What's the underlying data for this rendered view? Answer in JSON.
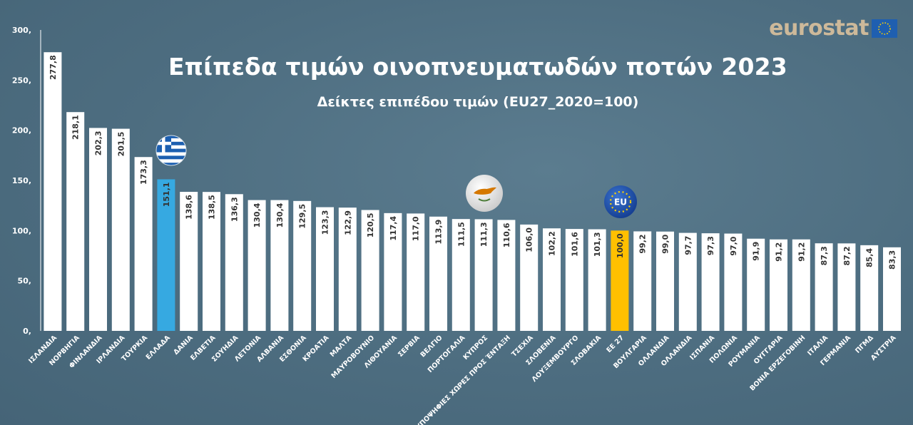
{
  "logo": {
    "text": "eurostat"
  },
  "colors": {
    "background": "#4f6f82",
    "bar_default": "#ffffff",
    "bar_greece": "#36a9e1",
    "bar_eu": "#ffc000",
    "text": "#ffffff",
    "value_text": "#333333",
    "logo_text": "#cdb99a"
  },
  "icons": {
    "greece": "greece-flag-icon",
    "cyprus": "cyprus-flag-icon",
    "eu": "eu-flag-icon"
  },
  "chart_data": {
    "type": "bar",
    "title": "Επίπεδα τιμών οινοπνευματωδών ποτών 2023",
    "subtitle": "Δείκτες επιπέδου τιμών (EU27_2020=100)",
    "xlabel": "",
    "ylabel": "",
    "ylim": [
      0,
      300
    ],
    "yticks": [
      "0,",
      "50,",
      "100,",
      "150,",
      "200,",
      "250,",
      "300,"
    ],
    "grid": false,
    "categories": [
      "ΙΣΛΑΝΔΙΑ",
      "ΝΟΡΒΗΓΙΑ",
      "ΦΙΝΛΑΝΔΙΑ",
      "ΙΡΛΑΝΔΙΑ",
      "ΤΟΥΡΚΙΑ",
      "ΕΛΛΑΔΑ",
      "ΔΑΝΙΑ",
      "ΕΛΒΕΤΙΑ",
      "ΣΟΥΗΔΙΑ",
      "ΛΕΤΟΝΙΑ",
      "ΑΛΒΑΝΙΑ",
      "ΕΣΘΟΝΙΑ",
      "ΚΡΟΑΤΙΑ",
      "ΜΑΛΤΑ",
      "ΜΑΥΡΟΒΟΥΝΙΟ",
      "ΛΙΘΟΥΑΝΙΑ",
      "ΣΕΡΒΙΑ",
      "ΒΕΛΓΙΟ",
      "ΠΟΡΤΟΓΑΛΙΑ",
      "ΚΥΠΡΟΣ",
      "ΥΠΟΨΗΦΙΕΣ ΧΩΡΕΣ ΠΡΟΣ ΈΝΤΑΞΗ",
      "ΤΣΕΧΙΑ",
      "ΣΛΟΒΕΝΙΑ",
      "ΛΟΥΞΕΜΒΟΥΡΓΟ",
      "ΣΛΟΒΑΚΙΑ",
      "ΕΕ 27",
      "ΒΟΥΛΓΑΡΙΑ",
      "ΟΛΛΑΝΔΙΑ",
      "ΟΛΛΑΝΔΙΑ",
      "ΙΣΠΑΝΙΑ",
      "ΠΟΛΩΝΙΑ",
      "ΡΟΥΜΑΝΙΑ",
      "ΟΥΓΓΑΡΙΑ",
      "ΒΟΝΙΑ ΕΡΖΕΓΟΒΙΝΗ",
      "ΙΤΑΛΙΑ",
      "ΓΕΡΜΑΝΙΑ",
      "ΠΓΜΔ",
      "ΑΥΣΤΡΙΑ"
    ],
    "values": [
      277.8,
      218.1,
      202.3,
      201.5,
      173.3,
      151.1,
      138.6,
      138.5,
      136.3,
      130.4,
      130.4,
      129.5,
      123.3,
      122.9,
      120.5,
      117.4,
      117.0,
      113.9,
      111.5,
      111.3,
      110.6,
      106.0,
      102.2,
      101.6,
      101.3,
      100.0,
      99.2,
      99.0,
      97.7,
      97.3,
      97.0,
      91.9,
      91.2,
      91.2,
      87.3,
      87.2,
      85.4,
      83.3
    ],
    "value_labels": [
      "277,8",
      "218,1",
      "202,3",
      "201,5",
      "173,3",
      "151,1",
      "138,6",
      "138,5",
      "136,3",
      "130,4",
      "130,4",
      "129,5",
      "123,3",
      "122,9",
      "120,5",
      "117,4",
      "117,0",
      "113,9",
      "111,5",
      "111,3",
      "110,6",
      "106,0",
      "102,2",
      "101,6",
      "101,3",
      "100,0",
      "99,2",
      "99,0",
      "97,7",
      "97,3",
      "97,0",
      "91,9",
      "91,2",
      "91,2",
      "87,3",
      "87,2",
      "85,4",
      "83,3"
    ],
    "highlight": {
      "greece_index": 5,
      "eu_index": 25,
      "cyprus_index": 19
    }
  }
}
